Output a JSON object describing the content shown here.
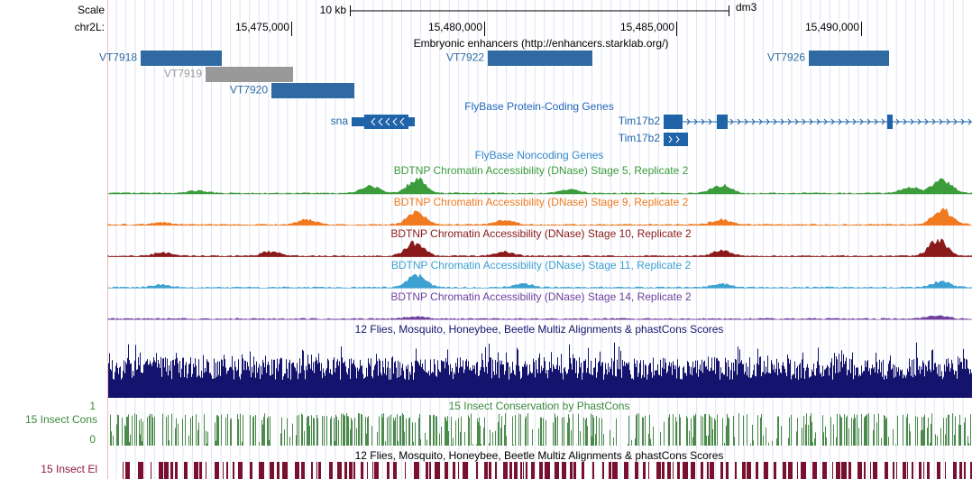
{
  "scale": {
    "label": "Scale",
    "bar_label": "10 kb",
    "assembly": "dm3"
  },
  "ruler": {
    "chrom": "chr2L:",
    "ticks": [
      "15,475,000",
      "15,480,000",
      "15,485,000",
      "15,490,000"
    ]
  },
  "enhancers": {
    "title": "Embryonic enhancers (http://enhancers.starklab.org/)",
    "items": [
      "VT7918",
      "VT7919",
      "VT7920",
      "VT7922",
      "VT7926"
    ]
  },
  "protein_genes": {
    "title": "FlyBase Protein-Coding Genes",
    "genes": [
      "sna",
      "Tim17b2",
      "Tim17b2"
    ]
  },
  "noncoding_genes": {
    "title": "FlyBase Noncoding Genes"
  },
  "dnase": [
    "BDTNP Chromatin Accessibility (DNase) Stage 5, Replicate 2",
    "BDTNP Chromatin Accessibility (DNase) Stage 9, Replicate 2",
    "BDTNP Chromatin Accessibility (DNase) Stage 10, Replicate 2",
    "BDTNP Chromatin Accessibility (DNase) Stage 11, Replicate 2",
    "BDTNP Chromatin Accessibility (DNase) Stage 14, Replicate 2"
  ],
  "multiz": {
    "title": "12 Flies, Mosquito, Honeybee, Beetle Multiz Alignments & phastCons Scores"
  },
  "cons": {
    "title": "15 Insect Conservation by PhastCons",
    "label": "15 Insect Cons",
    "max": "1",
    "min": "0"
  },
  "elements": {
    "title": "12 Flies, Mosquito, Honeybee, Beetle Multiz Alignments & phastCons Scores",
    "label": "15 Insect El"
  }
}
